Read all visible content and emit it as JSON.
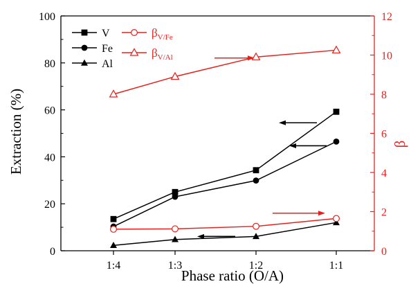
{
  "chart_data": {
    "type": "line",
    "categories": [
      "1:4",
      "1:3",
      "1:2",
      "1:1"
    ],
    "xlabel": "Phase ratio (O/A)",
    "ylabel_left": "Extraction (%)",
    "ylabel_right": "β",
    "ylim_left": [
      0,
      100
    ],
    "ylim_right": [
      0,
      12
    ],
    "yticks_left": [
      "0",
      "20",
      "40",
      "60",
      "80",
      "100"
    ],
    "yticks_right": [
      "0",
      "2",
      "4",
      "6",
      "8",
      "10",
      "12"
    ],
    "grid": false,
    "legend_position": "top-left",
    "colors": {
      "black": "#000000",
      "red": "#e8201c"
    },
    "series": [
      {
        "name": "V",
        "axis": "left",
        "marker": "square",
        "color": "#000000",
        "values": [
          13.5,
          25.0,
          34.3,
          59.2
        ]
      },
      {
        "name": "Fe",
        "axis": "left",
        "marker": "circle",
        "color": "#000000",
        "values": [
          10.3,
          23.0,
          29.9,
          46.5
        ]
      },
      {
        "name": "Al",
        "axis": "left",
        "marker": "triangle",
        "color": "#000000",
        "values": [
          2.3,
          4.8,
          6.1,
          12.0
        ]
      },
      {
        "name": "β",
        "sub": "V/Fe",
        "axis": "right",
        "marker": "circle-open",
        "color": "#e8201c",
        "values": [
          1.1,
          1.12,
          1.25,
          1.65
        ]
      },
      {
        "name": "β",
        "sub": "V/Al",
        "axis": "right",
        "marker": "triangle-open",
        "color": "#e8201c",
        "values": [
          8.0,
          8.9,
          9.9,
          10.25
        ]
      }
    ]
  }
}
